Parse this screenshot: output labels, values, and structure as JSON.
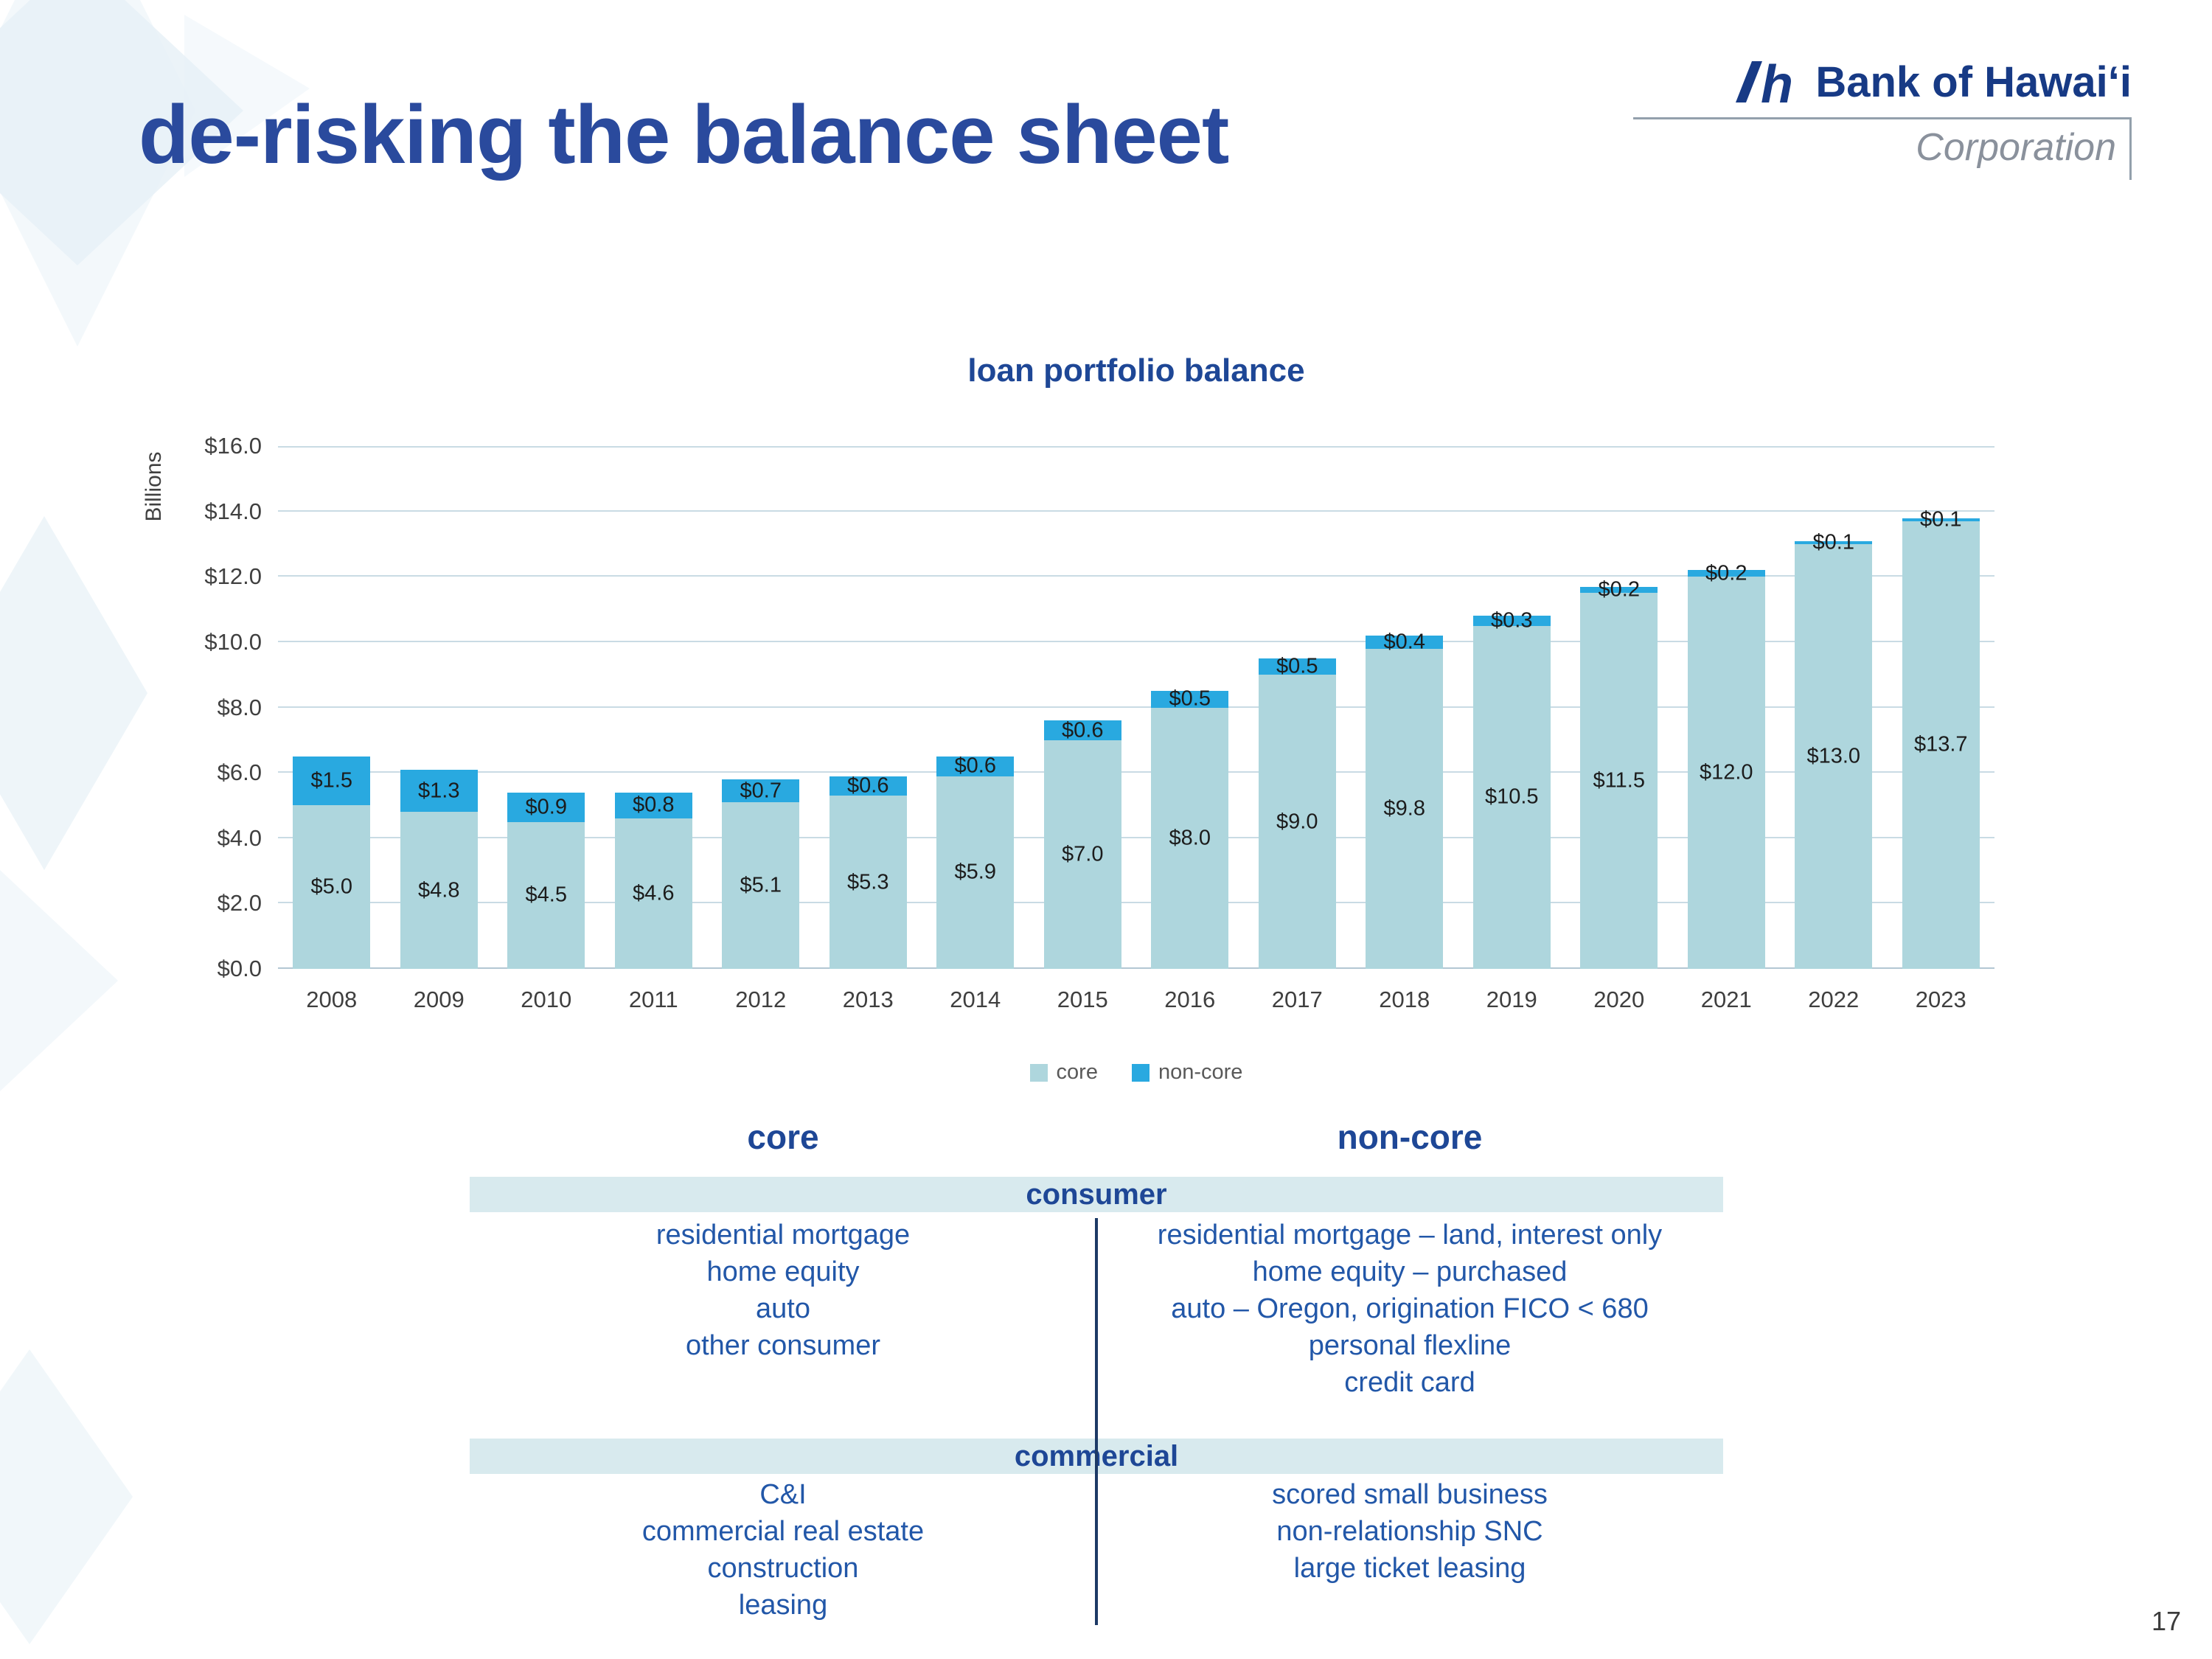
{
  "slide": {
    "title": "de-risking the balance sheet",
    "page_number": "17"
  },
  "logo": {
    "bank_name": "Bank of Hawaiʻi",
    "subtitle": "Corporation"
  },
  "chart_data": {
    "type": "bar",
    "stacked": true,
    "title": "loan portfolio balance",
    "ylabel": "Billions",
    "ylim": [
      0,
      16
    ],
    "ytick_step": 2,
    "ytick_labels": [
      "$16.0",
      "$14.0",
      "$12.0",
      "$10.0",
      "$8.0",
      "$6.0",
      "$4.0",
      "$2.0",
      "$0.0"
    ],
    "grid": true,
    "legend_position": "bottom",
    "categories": [
      "2008",
      "2009",
      "2010",
      "2011",
      "2012",
      "2013",
      "2014",
      "2015",
      "2016",
      "2017",
      "2018",
      "2019",
      "2020",
      "2021",
      "2022",
      "2023"
    ],
    "series": [
      {
        "name": "core",
        "color": "#aed6dd",
        "values": [
          5.0,
          4.8,
          4.5,
          4.6,
          5.1,
          5.3,
          5.9,
          7.0,
          8.0,
          9.0,
          9.8,
          10.5,
          11.5,
          12.0,
          13.0,
          13.7
        ],
        "labels": [
          "$5.0",
          "$4.8",
          "$4.5",
          "$4.6",
          "$5.1",
          "$5.3",
          "$5.9",
          "$7.0",
          "$8.0",
          "$9.0",
          "$9.8",
          "$10.5",
          "$11.5",
          "$12.0",
          "$13.0",
          "$13.7"
        ]
      },
      {
        "name": "non-core",
        "color": "#29a9e0",
        "values": [
          1.5,
          1.3,
          0.9,
          0.8,
          0.7,
          0.6,
          0.6,
          0.6,
          0.5,
          0.5,
          0.4,
          0.3,
          0.2,
          0.2,
          0.1,
          0.1
        ],
        "labels": [
          "$1.5",
          "$1.3",
          "$0.9",
          "$0.8",
          "$0.7",
          "$0.6",
          "$0.6",
          "$0.6",
          "$0.5",
          "$0.5",
          "$0.4",
          "$0.3",
          "$0.2",
          "$0.2",
          "$0.1",
          "$0.1"
        ]
      }
    ]
  },
  "table": {
    "core_header": "core",
    "non_core_header": "non-core",
    "sections": [
      {
        "name": "consumer",
        "core_items": [
          "residential mortgage",
          "home equity",
          "auto",
          "other consumer"
        ],
        "non_core_items": [
          "residential mortgage – land, interest only",
          "home equity – purchased",
          "auto – Oregon, origination FICO < 680",
          "personal flexline",
          "credit card"
        ]
      },
      {
        "name": "commercial",
        "core_items": [
          "C&I",
          "commercial real estate",
          "construction",
          "leasing"
        ],
        "non_core_items": [
          "scored small business",
          "non-relationship SNC",
          "large ticket leasing"
        ]
      }
    ]
  },
  "colors": {
    "accent_blue": "#1e4796",
    "item_blue": "#2257a8",
    "band_bg": "#d8eaee",
    "core_bar": "#aed6dd",
    "non_core_bar": "#29a9e0"
  }
}
